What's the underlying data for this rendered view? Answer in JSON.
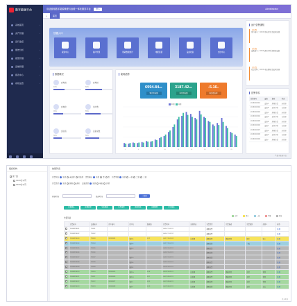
{
  "app": {
    "title": "数字能源平台",
    "header_text": "欢迎使用数字能源管理与运维一体化服务平台",
    "header_tag": "进入",
    "user_text": "Administrator",
    "active_tab": "首页"
  },
  "sidebar": {
    "items": [
      {
        "label": "系统首页"
      },
      {
        "label": "资产管理"
      },
      {
        "label": "运行监控"
      },
      {
        "label": "能效分析"
      },
      {
        "label": "报警管理"
      },
      {
        "label": "运维管理"
      },
      {
        "label": "报表中心"
      },
      {
        "label": "系统设置"
      }
    ]
  },
  "quick_access": {
    "title": "快捷入口",
    "tiles": [
      {
        "label": "资源中心",
        "icon": "monitor-icon"
      },
      {
        "label": "客户管理",
        "icon": "user-icon"
      },
      {
        "label": "能耗数据统计",
        "icon": "building-icon"
      },
      {
        "label": "电能质量",
        "icon": "chart-icon"
      },
      {
        "label": "设备档案",
        "icon": "image-icon"
      },
      {
        "label": "文档中心",
        "icon": "document-icon"
      }
    ]
  },
  "overview": {
    "title": "数据概况",
    "stats": [
      {
        "label": "充电站",
        "value": "40%",
        "progress": 0.4
      },
      {
        "label": "充电桩",
        "value": "60%",
        "progress": 0.6
      },
      {
        "label": "充电枪",
        "value": "35%",
        "progress": 0.35
      },
      {
        "label": "用户数",
        "value": "55%",
        "progress": 0.55
      },
      {
        "label": "运营商",
        "value": "30%",
        "progress": 0.3
      },
      {
        "label": "设备总数",
        "value": "50%",
        "progress": 0.5
      }
    ]
  },
  "energy": {
    "title": "能耗趋势",
    "kpis": [
      {
        "value": "6994.84",
        "unit": "kWh",
        "label": "累计用电量",
        "color": "#2f8fc9"
      },
      {
        "value": "3187.42",
        "unit": "kWh",
        "label": "本月用电量",
        "color": "#2ba38c"
      },
      {
        "value": "-5.16",
        "unit": "%",
        "label": "同比增长率",
        "color": "#ee7a2c"
      }
    ],
    "legend": [
      "本期",
      "同期"
    ]
  },
  "chart_data": {
    "type": "bar",
    "legend": [
      "本期",
      "同期"
    ],
    "categories": [
      "1",
      "2",
      "3",
      "4",
      "5",
      "6",
      "7",
      "8",
      "9",
      "10",
      "11",
      "12",
      "13",
      "14",
      "15",
      "16",
      "17",
      "18",
      "19",
      "20",
      "21",
      "22",
      "23",
      "24",
      "25",
      "26"
    ],
    "series": [
      {
        "name": "本期",
        "values": [
          8,
          7,
          9,
          8,
          10,
          12,
          11,
          15,
          18,
          22,
          30,
          40,
          55,
          62,
          70,
          66,
          58,
          72,
          60,
          52,
          45,
          48,
          58,
          42,
          30,
          25
        ]
      },
      {
        "name": "同期",
        "values": [
          7,
          8,
          8,
          9,
          9,
          11,
          12,
          14,
          20,
          25,
          33,
          45,
          60,
          68,
          64,
          60,
          55,
          65,
          58,
          50,
          42,
          44,
          50,
          38,
          28,
          22
        ]
      }
    ],
    "ylim": [
      0,
      80
    ]
  },
  "notices": {
    "title": "运行告警通知",
    "items": [
      {
        "title": "【告警】",
        "text": "用户编号：XXXX 用电异常 请及时处理"
      },
      {
        "title": "【告警】",
        "text": "设备编号：XXXX 通讯中断 请检查设备"
      },
      {
        "title": "【告警】",
        "text": "站点名称：XXXX 电压越限 请及时处理"
      }
    ]
  },
  "events": {
    "title": "告警事件",
    "headers": [
      "告警编号",
      "设备",
      "类型",
      "状态"
    ],
    "rows": [
      [
        "20180323001",
        "设备A",
        "越限告警",
        "未处理"
      ],
      [
        "20180323002",
        "设备B",
        "通讯中断",
        "已处理"
      ],
      [
        "20180323003",
        "设备C",
        "越限告警",
        "未处理"
      ],
      [
        "20180323004",
        "设备D",
        "通讯中断",
        "已处理"
      ],
      [
        "20180323005",
        "设备E",
        "越限告警",
        "未处理"
      ],
      [
        "20180323006",
        "设备F",
        "通讯中断",
        "已处理"
      ],
      [
        "20180323007",
        "设备G",
        "越限告警",
        "未处理"
      ],
      [
        "20180323008",
        "设备H",
        "通讯中断",
        "已处理"
      ],
      [
        "20180323009",
        "设备I",
        "越限告警",
        "未处理"
      ]
    ]
  },
  "footer_copy": "© 数字能源平台",
  "list_page": {
    "tree_title": "组织机构",
    "tree": [
      "第一组",
      "XXXX分公司",
      "XXXX分公司"
    ],
    "panel_title": "告警列表",
    "filters": {
      "row1": [
        {
          "label": "告警状态",
          "opts": [
            "全部",
            "未处理",
            "已处理"
          ]
        },
        {
          "label": "是否确认",
          "opts": [
            "全部",
            "是",
            "否"
          ]
        },
        {
          "label": "告警等级",
          "opts": [
            "全部",
            "一级",
            "二级",
            "三级"
          ]
        }
      ],
      "row2": [
        {
          "label": "告警类型",
          "opts": [
            "全部",
            "越限",
            "通讯"
          ]
        },
        {
          "label": "设备类型",
          "opts": [
            "全部",
            "电表",
            "其他"
          ]
        }
      ],
      "start_label": "开始时间",
      "end_label": "结束时间",
      "query": "查询"
    },
    "actions": [
      "批量确认",
      "批量处理",
      "导出数据",
      "告警设置",
      "刷新列表",
      "批量删除",
      "打印报表"
    ],
    "legend": [
      {
        "label": "正常",
        "color": "#a5d8a0"
      },
      {
        "label": "提示",
        "color": "#f7e35a"
      },
      {
        "label": "一般",
        "color": "#9ccfe0"
      },
      {
        "label": "严重",
        "color": "#f09a9a"
      },
      {
        "label": "紧急",
        "color": "#b7b7b7"
      }
    ],
    "grid_title": "告警列表",
    "headers": [
      "",
      "告警编号",
      "设备编号",
      "用户编号",
      "用户名",
      "数据值",
      "告警时间",
      "处理状态",
      "告警类型",
      "告警描述",
      "告警级别",
      "处理人",
      "操作"
    ],
    "rows": [
      {
        "c": [
          "",
          "20180323001",
          "TK001",
          "",
          "",
          "",
          "04-16 17:02:11",
          "",
          "越限告警",
          "",
          "",
          "",
          "处理"
        ],
        "bg": "#ffffff"
      },
      {
        "c": [
          "",
          "20180323002",
          "TK002",
          "",
          "",
          "",
          "04-16 17:02:12",
          "",
          "越限告警",
          "",
          "",
          "",
          "处理"
        ],
        "bg": "#ffffff"
      },
      {
        "c": [
          "",
          "20180323003",
          "TK003",
          "20180324",
          "客户A",
          "0.22",
          "04-17 19:03:24",
          "已处理",
          "越限告警",
          "数据异常",
          "提示",
          "张三",
          "处理"
        ],
        "bg": "#f7e35a"
      },
      {
        "c": [
          "",
          "20180323004",
          "TK004",
          "",
          "客户B",
          "",
          "04-17 19:04:13",
          "",
          "越限告警",
          "",
          "一般",
          "",
          "处理"
        ],
        "bg": "#9ccfe0"
      },
      {
        "c": [
          "",
          "20180323005",
          "TK005",
          "",
          "客户C",
          "",
          "04-18 15:02:11",
          "",
          "越限告警",
          "",
          "",
          "",
          "处理"
        ],
        "bg": "#b7b7b7"
      },
      {
        "c": [
          "",
          "20180323006",
          "TK006",
          "",
          "",
          "",
          "04-18 15:03:11",
          "",
          "越限告警",
          "",
          "",
          "",
          "处理"
        ],
        "bg": "#b7b7b7"
      },
      {
        "c": [
          "",
          "20180323007",
          "TK007",
          "",
          "客户D",
          "",
          "04-19 13:02:11",
          "",
          "越限告警",
          "",
          "",
          "",
          "处理"
        ],
        "bg": "#b7b7b7"
      },
      {
        "c": [
          "",
          "20180323008",
          "TK008",
          "",
          "客户E",
          "",
          "04-19 13:04:11",
          "",
          "越限告警",
          "",
          "",
          "",
          "处理"
        ],
        "bg": "#b7b7b7"
      },
      {
        "c": [
          "",
          "20180323009",
          "TK009",
          "",
          "客户F",
          "",
          "04-20 10:01:11",
          "",
          "越限告警",
          "",
          "",
          "",
          "处理"
        ],
        "bg": "#b7b7b7"
      },
      {
        "c": [
          "",
          "20180323010",
          "TK010",
          "20180325",
          "客户G",
          "0.18",
          "04-20 10:05:11",
          "已处理",
          "越限告警",
          "数据异常",
          "正常",
          "李四",
          "处理"
        ],
        "bg": "#a5d8a0"
      },
      {
        "c": [
          "",
          "20180323011",
          "TK011",
          "20180326",
          "客户H",
          "0.21",
          "04-21 09:02:11",
          "已处理",
          "越限告警",
          "数据异常",
          "正常",
          "李四",
          "处理"
        ],
        "bg": "#a5d8a0"
      },
      {
        "c": [
          "",
          "20180323012",
          "TK012",
          "20180327",
          "客户I",
          "0.25",
          "04-21 09:06:11",
          "已处理",
          "越限告警",
          "数据异常",
          "正常",
          "李四",
          "处理"
        ],
        "bg": "#a5d8a0"
      },
      {
        "c": [
          "",
          "20180323013",
          "TK013",
          "20180328",
          "客户J",
          "0.19",
          "04-22 08:02:11",
          "已处理",
          "越限告警",
          "数据异常",
          "正常",
          "王五",
          "处理"
        ],
        "bg": "#a5d8a0"
      }
    ],
    "pager": "共 13 条"
  }
}
